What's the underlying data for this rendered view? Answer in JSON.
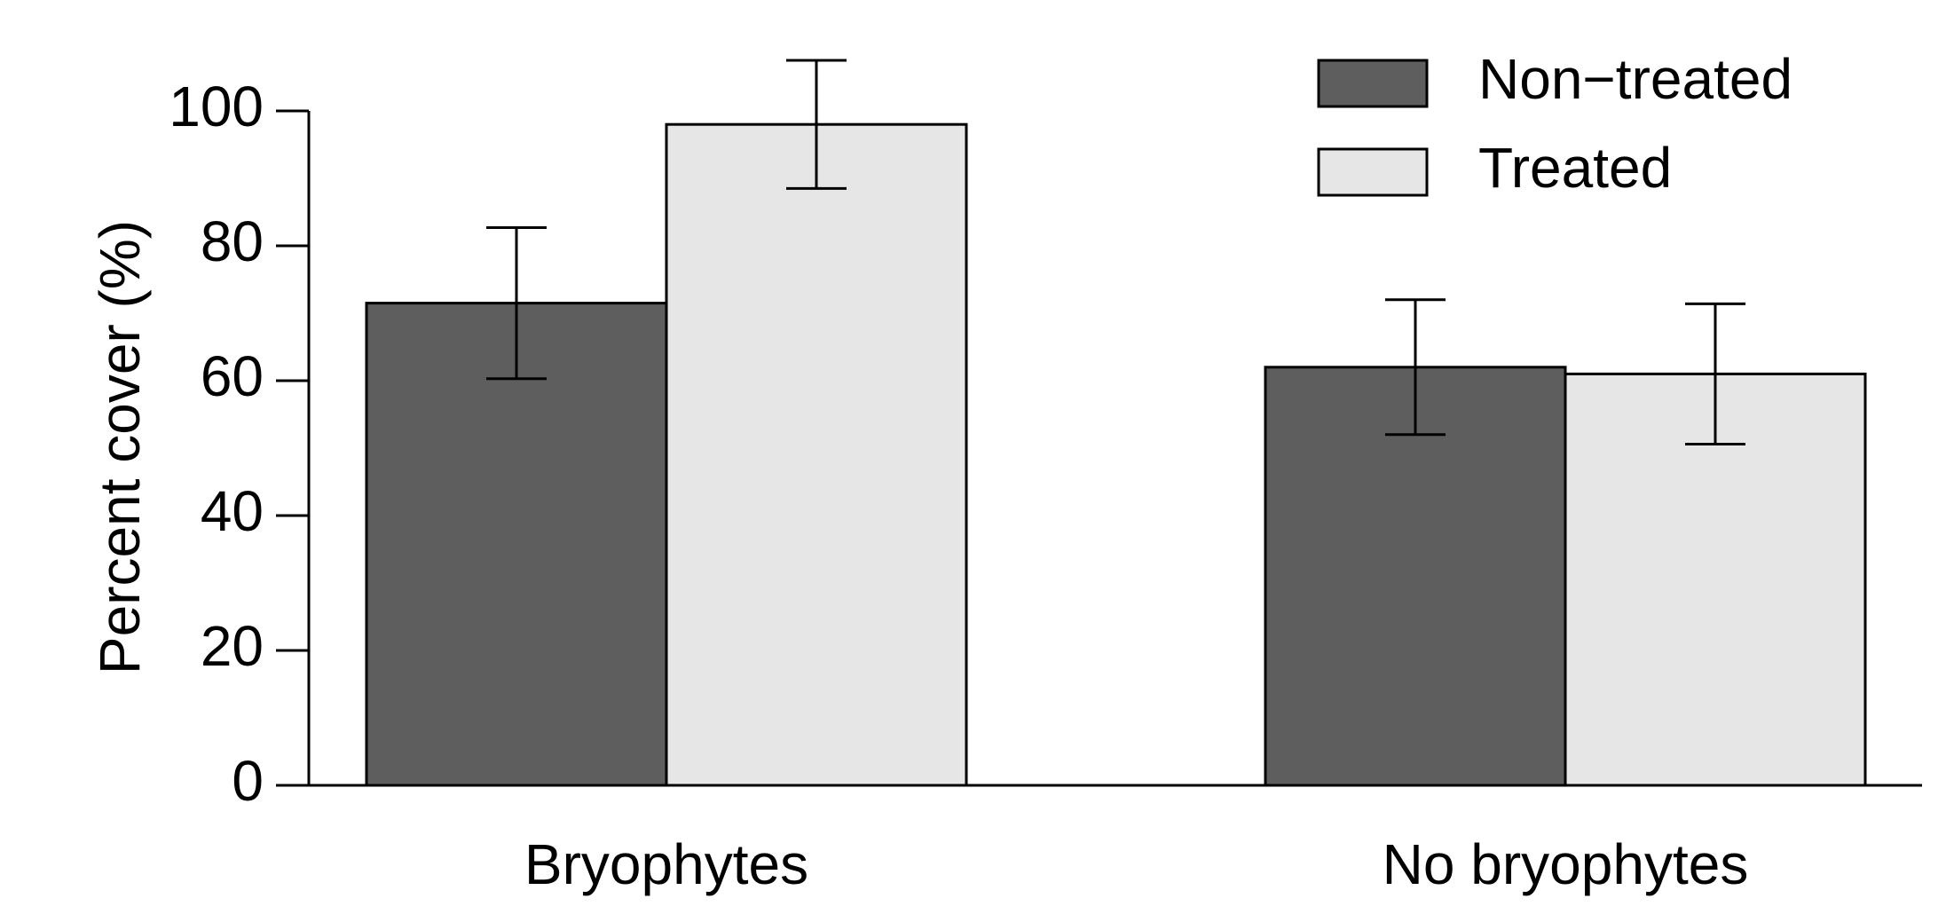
{
  "chart_data": {
    "type": "bar",
    "title": "",
    "xlabel": "",
    "ylabel": "Percent cover (%)",
    "ylim": [
      0,
      100
    ],
    "yticks": [
      0,
      20,
      40,
      60,
      80,
      100
    ],
    "categories": [
      "Bryophytes",
      "No bryophytes"
    ],
    "series": [
      {
        "name": "Non−treated",
        "color": "#5e5e5e",
        "values": [
          71.5,
          62
        ],
        "errors": [
          11.2,
          10
        ]
      },
      {
        "name": "Treated",
        "color": "#e6e6e6",
        "values": [
          98,
          61
        ],
        "errors": [
          9.5,
          10.4
        ]
      }
    ],
    "legend_position": "top-right",
    "grid": false
  }
}
